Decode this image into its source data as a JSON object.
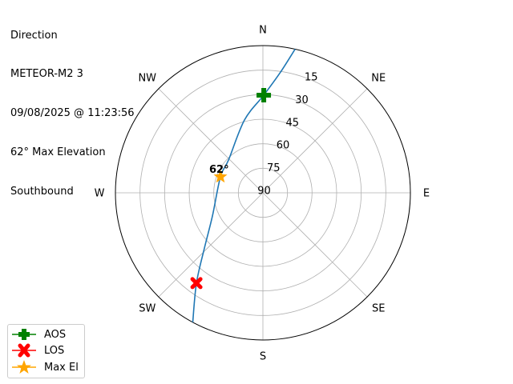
{
  "title_lines": [
    "Direction",
    "METEOR-M2 3",
    "09/08/2025 @ 11:23:56",
    "62° Max Elevation",
    "Southbound"
  ],
  "chart_data": {
    "type": "polar-line",
    "title": "Direction\nMETEOR-M2 3\n09/08/2025 @ 11:23:56\n62° Max Elevation\nSouthbound",
    "direction_labels": [
      {
        "label": "N",
        "az": 0
      },
      {
        "label": "NE",
        "az": 45
      },
      {
        "label": "E",
        "az": 90
      },
      {
        "label": "SE",
        "az": 135
      },
      {
        "label": "S",
        "az": 180
      },
      {
        "label": "SW",
        "az": 225
      },
      {
        "label": "W",
        "az": 270
      },
      {
        "label": "NW",
        "az": 315
      }
    ],
    "elevation_ticks": [
      15,
      30,
      45,
      60,
      75,
      90
    ],
    "elevation_range": [
      0,
      90
    ],
    "grid": true,
    "track": {
      "color": "#1f77b4",
      "points": [
        {
          "az": 12.6,
          "el": 0
        },
        {
          "az": 8.3,
          "el": 15.4
        },
        {
          "az": 0.5,
          "el": 30.3
        },
        {
          "az": 345.8,
          "el": 44.1
        },
        {
          "az": 313.6,
          "el": 61.0
        },
        {
          "az": 290.7,
          "el": 62.3
        },
        {
          "az": 245.3,
          "el": 56.1
        },
        {
          "az": 226.6,
          "el": 40.9
        },
        {
          "az": 216.3,
          "el": 21.5
        },
        {
          "az": 208.4,
          "el": 0
        }
      ]
    },
    "markers": [
      {
        "name": "AOS",
        "az": 0.5,
        "el": 30.3,
        "color": "#008000",
        "symbol": "plus"
      },
      {
        "name": "LOS",
        "az": 216.3,
        "el": 21.5,
        "color": "#ff0000",
        "symbol": "x"
      },
      {
        "name": "Max El",
        "az": 290.7,
        "el": 62.3,
        "color": "#ffa500",
        "symbol": "star"
      }
    ],
    "annotation": "62°",
    "legend_position": "bottom-left"
  }
}
